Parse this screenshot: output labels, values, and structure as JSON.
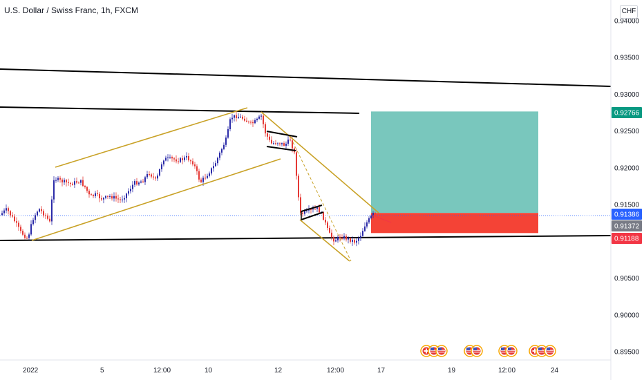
{
  "header": {
    "title": "U.S. Dollar / Swiss Franc, 1h, FXCM",
    "currency": "CHF"
  },
  "chart_data": {
    "type": "candlestick",
    "symbol": "USDCHF",
    "y_ticks": [
      "0.94000",
      "0.93500",
      "0.93000",
      "0.92500",
      "0.92000",
      "0.91500",
      "0.91000",
      "0.90500",
      "0.90000",
      "0.89500"
    ],
    "y_tick_values": [
      0.94,
      0.935,
      0.93,
      0.925,
      0.92,
      0.915,
      0.91,
      0.905,
      0.9,
      0.895
    ],
    "x_ticks": [
      "2022",
      "5",
      "12:00",
      "10",
      "12",
      "12:00",
      "17",
      "19",
      "12:00",
      "24"
    ],
    "ylim": [
      0.8945,
      0.9408
    ],
    "price_levels": [
      {
        "label": "0.92766",
        "value": 0.92766,
        "color": "#089981"
      },
      {
        "label": "0.91386",
        "value": 0.91386,
        "color": "#2962ff"
      },
      {
        "label": "0.91372",
        "value": 0.91372,
        "color": "#787b86"
      },
      {
        "label": "0.91188",
        "value": 0.91188,
        "color": "#f23645"
      }
    ],
    "trade": {
      "entry": 0.91386,
      "take_profit": 0.92766,
      "stop_loss": 0.91188,
      "profit_color": "#79c7bd",
      "loss_color": "#f44336"
    },
    "colors": {
      "up": "#2a2aa8",
      "down": "#e53935",
      "trendline": "#000000",
      "channel": "#c9a227"
    },
    "event_icons": [
      "swiss-flag-icon",
      "us-flag-icon",
      "us-flag-icon",
      "us-flag-icon",
      "swiss-flag-icon"
    ]
  }
}
